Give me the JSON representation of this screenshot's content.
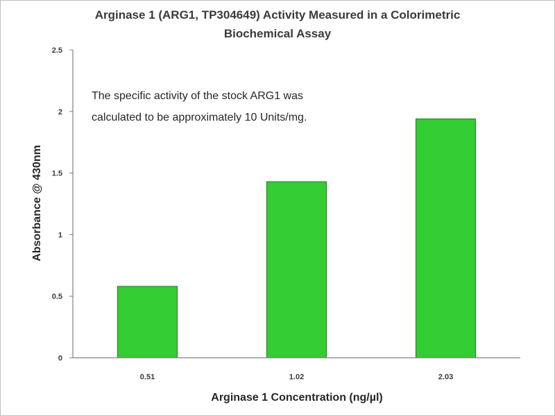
{
  "chart_data": {
    "type": "bar",
    "title_lines": [
      "Arginase 1 (ARG1, TP304649) Activity  Measured in a Colorimetric",
      "Biochemical Assay"
    ],
    "xlabel": "Arginase 1 Concentration (ng/µl)",
    "ylabel": "Absorbance @ 430nm",
    "categories": [
      "0.51",
      "1.02",
      "2.03"
    ],
    "values": [
      0.58,
      1.43,
      1.94
    ],
    "ylim": [
      0,
      2.5
    ],
    "yticks": [
      "0",
      "0.5",
      "1",
      "1.5",
      "2",
      "2.5"
    ],
    "annotation_lines": [
      "The specific activity of the stock ARG1 was",
      "calculated to be approximately  10 Units/mg."
    ],
    "grid": false,
    "legend": "none",
    "colors": {
      "bar_fill": "#33cc33",
      "bar_stroke": "#1f7a1f",
      "axis": "#7f7f7f"
    }
  }
}
